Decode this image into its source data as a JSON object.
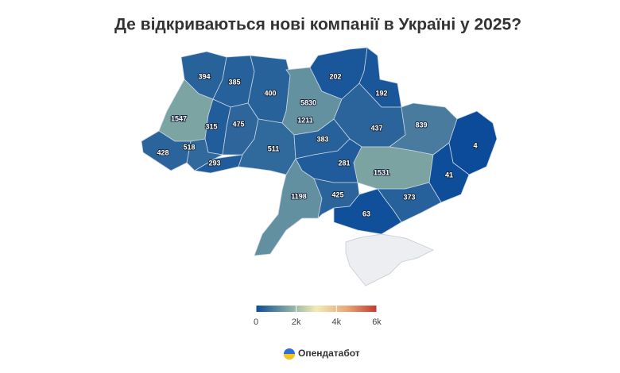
{
  "chart_data": {
    "type": "choropleth",
    "title": "Де відкриваються нові компанії в Україні у 2025?",
    "values": [
      394,
      385,
      400,
      5830,
      1211,
      202,
      192,
      1547,
      315,
      475,
      437,
      839,
      428,
      518,
      511,
      383,
      4,
      293,
      281,
      1531,
      1198,
      425,
      41,
      373,
      63
    ],
    "colorscale": [
      [
        0,
        "#0b4b99"
      ],
      [
        0.3,
        "#8fb3a3"
      ],
      [
        0.5,
        "#f3eab4"
      ],
      [
        0.75,
        "#e8a877"
      ],
      [
        1,
        "#c4392d"
      ]
    ],
    "colorlim": [
      0,
      6000
    ],
    "colorticks": [
      0,
      {
        "value": 2000,
        "label": "2k"
      },
      {
        "value": 4000,
        "label": "4k"
      },
      {
        "value": 6000,
        "label": "6k"
      }
    ],
    "source": "Опендатабот"
  }
}
